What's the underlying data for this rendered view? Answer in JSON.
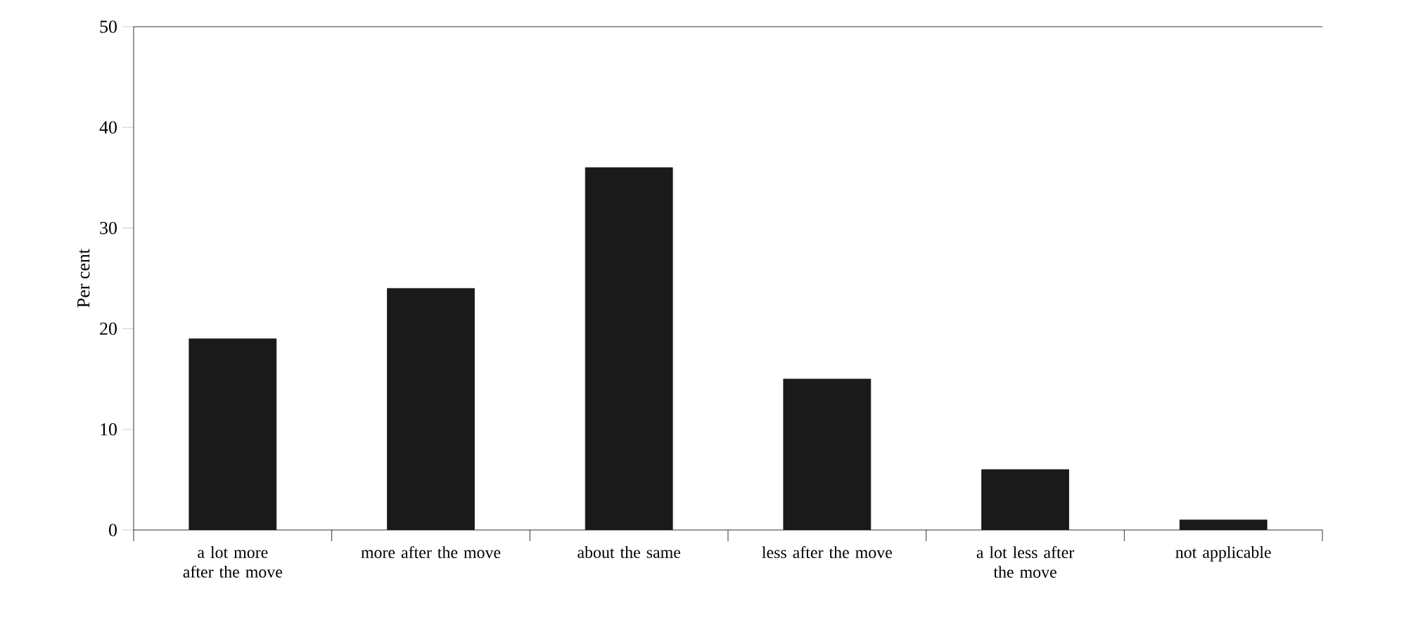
{
  "chart_data": {
    "type": "bar",
    "ylabel": "Per cent",
    "categories": [
      "a lot more after the move",
      "more after the move",
      "about the same",
      "less after the move",
      "a lot less after the move",
      "not applicable"
    ],
    "values": [
      19,
      24,
      36,
      15,
      6,
      1
    ],
    "color": "#1a1a1a",
    "ylim": [
      0,
      50
    ],
    "yticks": [
      0,
      10,
      20,
      30,
      40,
      50
    ],
    "grid": false
  }
}
